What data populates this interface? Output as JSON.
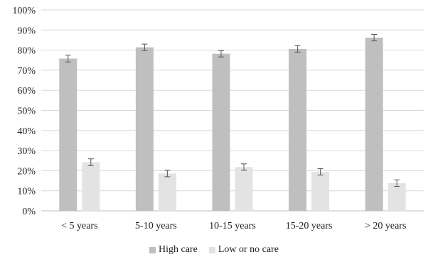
{
  "chart_data": {
    "type": "bar",
    "title": "",
    "xlabel": "",
    "ylabel": "",
    "categories": [
      "< 5 years",
      "5-10 years",
      "10-15 years",
      "15-20 years",
      "> 20 years"
    ],
    "series": [
      {
        "name": "High care",
        "color": "#bfbfbf",
        "values": [
          75.8,
          81.4,
          78.2,
          80.6,
          86.2
        ],
        "error": [
          1.7,
          1.6,
          1.6,
          1.6,
          1.6
        ]
      },
      {
        "name": "Low or no care",
        "color": "#e3e3e3",
        "values": [
          24.2,
          18.6,
          21.8,
          19.4,
          13.8
        ],
        "error": [
          1.7,
          1.6,
          1.6,
          1.6,
          1.6
        ]
      }
    ],
    "ylim": [
      0,
      100
    ],
    "yticks": [
      0,
      10,
      20,
      30,
      40,
      50,
      60,
      70,
      80,
      90,
      100
    ],
    "ytick_labels": [
      "0%",
      "10%",
      "20%",
      "30%",
      "40%",
      "50%",
      "60%",
      "70%",
      "80%",
      "90%",
      "100%"
    ],
    "grid": true,
    "legend_position": "bottom"
  }
}
